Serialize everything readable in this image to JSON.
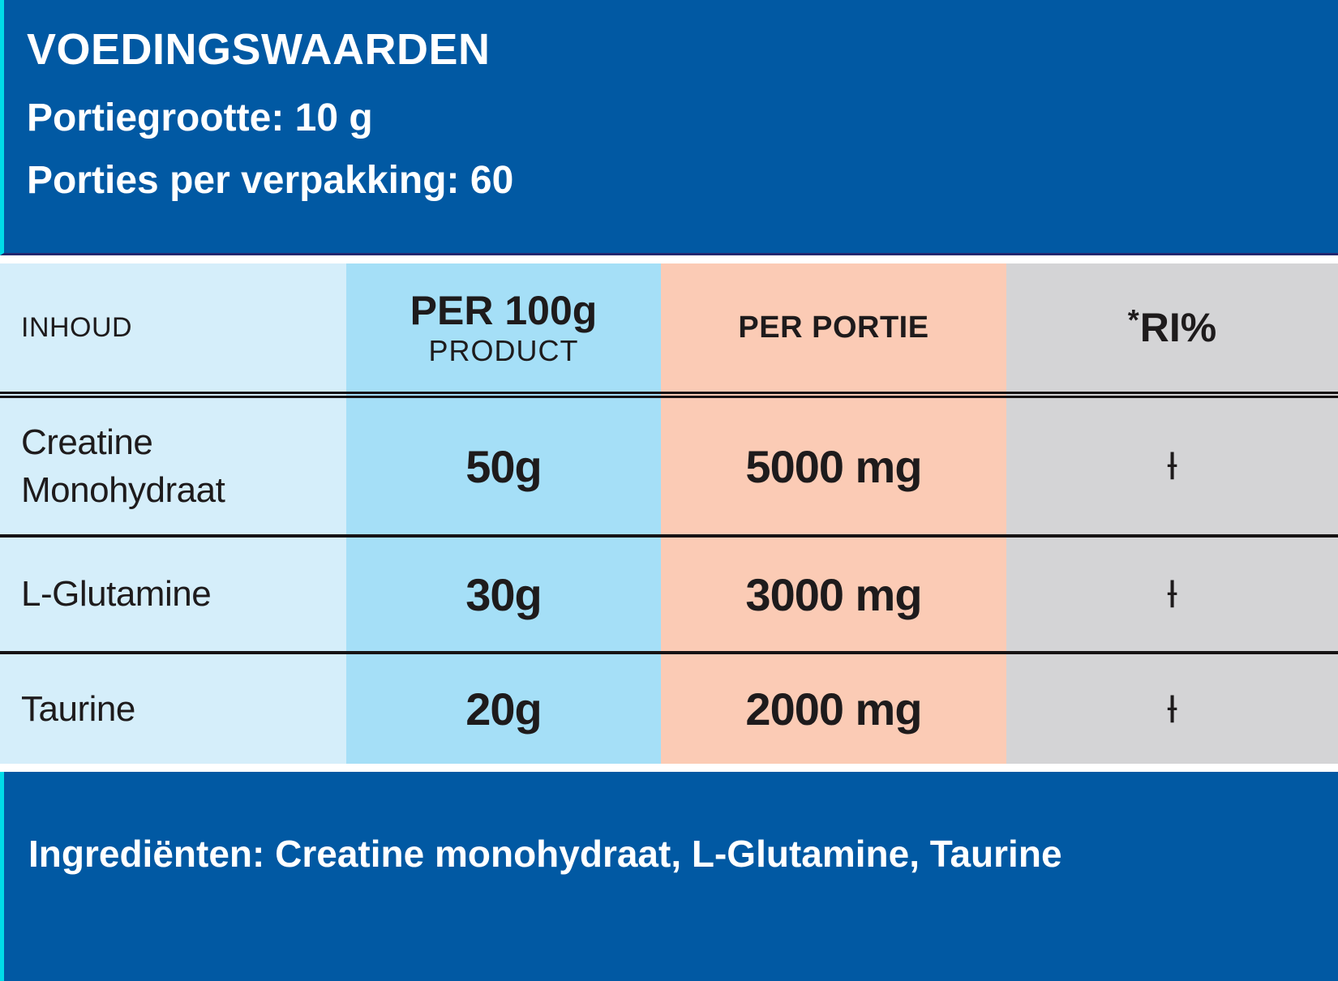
{
  "header": {
    "title": "VOEDINGSWAARDEN",
    "serving_size": "Portiegrootte: 10 g",
    "servings_per_pack": "Porties per verpakking: 60"
  },
  "table": {
    "columns": {
      "inhoud": {
        "label": "INHOUD"
      },
      "per100": {
        "line1": "PER 100g",
        "line2": "PRODUCT"
      },
      "portie": {
        "label": "PER PORTIE"
      },
      "ri": {
        "star": "*",
        "label": "RI%"
      }
    },
    "rows": [
      {
        "name": "Creatine Monohydraat",
        "per_100g": "50g",
        "per_portie": "5000 mg",
        "ri": "Ɨ"
      },
      {
        "name": "L-Glutamine",
        "per_100g": "30g",
        "per_portie": "3000 mg",
        "ri": "Ɨ"
      },
      {
        "name": "Taurine",
        "per_100g": "20g",
        "per_portie": "2000 mg",
        "ri": "Ɨ"
      }
    ]
  },
  "footer": {
    "ingredients": "Ingrediënten: Creatine monohydraat, L-Glutamine, Taurine"
  },
  "colors": {
    "panel_blue": "#0159A3",
    "accent_cyan": "#00DCE9",
    "panel_bottom_edge": "#23276E",
    "col_inhoud_bg": "#D5EEFA",
    "col_per100_bg": "#A5DFF7",
    "col_portie_bg": "#FBCBB5",
    "col_ri_bg": "#D4D4D6",
    "rule_black": "#161314",
    "text_dark": "#1E1B1C",
    "text_white": "#FFFFFF"
  }
}
